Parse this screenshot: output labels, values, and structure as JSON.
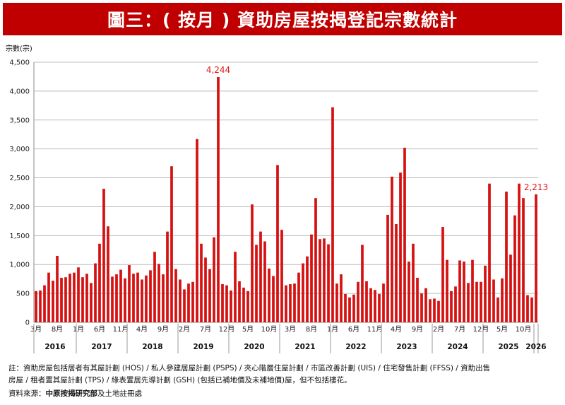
{
  "title": "圖三：( 按月 ) 資助房屋按揭登記宗數統計",
  "colors": {
    "title_bg": "#c00000",
    "bar": "#d51111",
    "highlight": "#e0161b",
    "grid": "#bdbdbd"
  },
  "chart_data": {
    "type": "bar",
    "ylabel": "宗數(宗)",
    "ylim": [
      0,
      4500
    ],
    "yticks": [
      "0",
      "500",
      "1,000",
      "1,500",
      "2,000",
      "2,500",
      "3,000",
      "3,500",
      "4,000",
      "4,500"
    ],
    "ytick_values": [
      0,
      500,
      1000,
      1500,
      2000,
      2500,
      3000,
      3500,
      4000,
      4500
    ],
    "grid": true,
    "month_ticks": [
      {
        "index": 0,
        "label": "3月"
      },
      {
        "index": 5,
        "label": "8月"
      },
      {
        "index": 10,
        "label": "1月"
      },
      {
        "index": 15,
        "label": "6月"
      },
      {
        "index": 20,
        "label": "11月"
      },
      {
        "index": 25,
        "label": "4月"
      },
      {
        "index": 30,
        "label": "9月"
      },
      {
        "index": 35,
        "label": "2月"
      },
      {
        "index": 40,
        "label": "7月"
      },
      {
        "index": 45,
        "label": "12月"
      },
      {
        "index": 50,
        "label": "5月"
      },
      {
        "index": 55,
        "label": "10月"
      },
      {
        "index": 60,
        "label": "3月"
      },
      {
        "index": 65,
        "label": "8月"
      },
      {
        "index": 70,
        "label": "1月"
      },
      {
        "index": 75,
        "label": "6月"
      },
      {
        "index": 80,
        "label": "11月"
      },
      {
        "index": 85,
        "label": "4月"
      },
      {
        "index": 90,
        "label": "9月"
      },
      {
        "index": 95,
        "label": "2月"
      },
      {
        "index": 100,
        "label": "7月"
      },
      {
        "index": 105,
        "label": "12月"
      },
      {
        "index": 110,
        "label": "5月"
      },
      {
        "index": 115,
        "label": "10月"
      }
    ],
    "years": [
      {
        "label": "2016",
        "start": 0,
        "end": 9
      },
      {
        "label": "2017",
        "start": 10,
        "end": 21
      },
      {
        "label": "2018",
        "start": 22,
        "end": 33
      },
      {
        "label": "2019",
        "start": 34,
        "end": 45
      },
      {
        "label": "2020",
        "start": 46,
        "end": 57
      },
      {
        "label": "2021",
        "start": 58,
        "end": 69
      },
      {
        "label": "2022",
        "start": 70,
        "end": 81
      },
      {
        "label": "2023",
        "start": 82,
        "end": 93
      },
      {
        "label": "2024",
        "start": 94,
        "end": 105
      },
      {
        "label": "2025",
        "start": 106,
        "end": 117
      },
      {
        "label": "2026",
        "start": 118,
        "end": 118
      }
    ],
    "values": [
      540,
      550,
      640,
      860,
      720,
      1150,
      770,
      780,
      840,
      860,
      950,
      780,
      840,
      680,
      1020,
      1360,
      2310,
      1660,
      790,
      830,
      910,
      760,
      990,
      840,
      860,
      740,
      810,
      900,
      1220,
      1010,
      830,
      1570,
      2700,
      920,
      740,
      570,
      670,
      700,
      3170,
      1360,
      1120,
      920,
      1470,
      4244,
      660,
      640,
      550,
      1220,
      710,
      600,
      540,
      2040,
      1340,
      1570,
      1400,
      930,
      800,
      2720,
      1600,
      640,
      660,
      670,
      860,
      1020,
      1140,
      1520,
      2150,
      1440,
      1450,
      1350,
      3720,
      670,
      830,
      490,
      430,
      480,
      700,
      1340,
      710,
      590,
      560,
      490,
      670,
      1860,
      2520,
      1700,
      2590,
      3020,
      1050,
      1360,
      770,
      500,
      590,
      400,
      410,
      370,
      1650,
      1080,
      540,
      620,
      1070,
      1050,
      680,
      1080,
      700,
      700,
      980,
      2400,
      740,
      430,
      760,
      2260,
      1170,
      1850,
      2400,
      2150,
      470,
      430,
      2213
    ],
    "annotations": [
      {
        "index": 43,
        "label": "4,244"
      },
      {
        "index": 118,
        "label": "2,213"
      }
    ]
  },
  "footer": {
    "note_line1": "註：資助房屋包括居者有其屋計劃 (HOS) / 私人參建居屋計劃 (PSPS) / 夾心階層住屋計劃 / 市區改善計劃 (UIS) / 住宅發售計劃 (FFSS) / 資助出售",
    "note_line2": "房屋 / 租者置其屋計劃 (TPS) / 綠表置居先導計劃 (GSH) (包括已補地價及未補地價)屋，但不包括樓花。",
    "source_label": "資料來源：",
    "source_bold": "中原按揭研究部",
    "source_rest": "及土地註冊處"
  }
}
